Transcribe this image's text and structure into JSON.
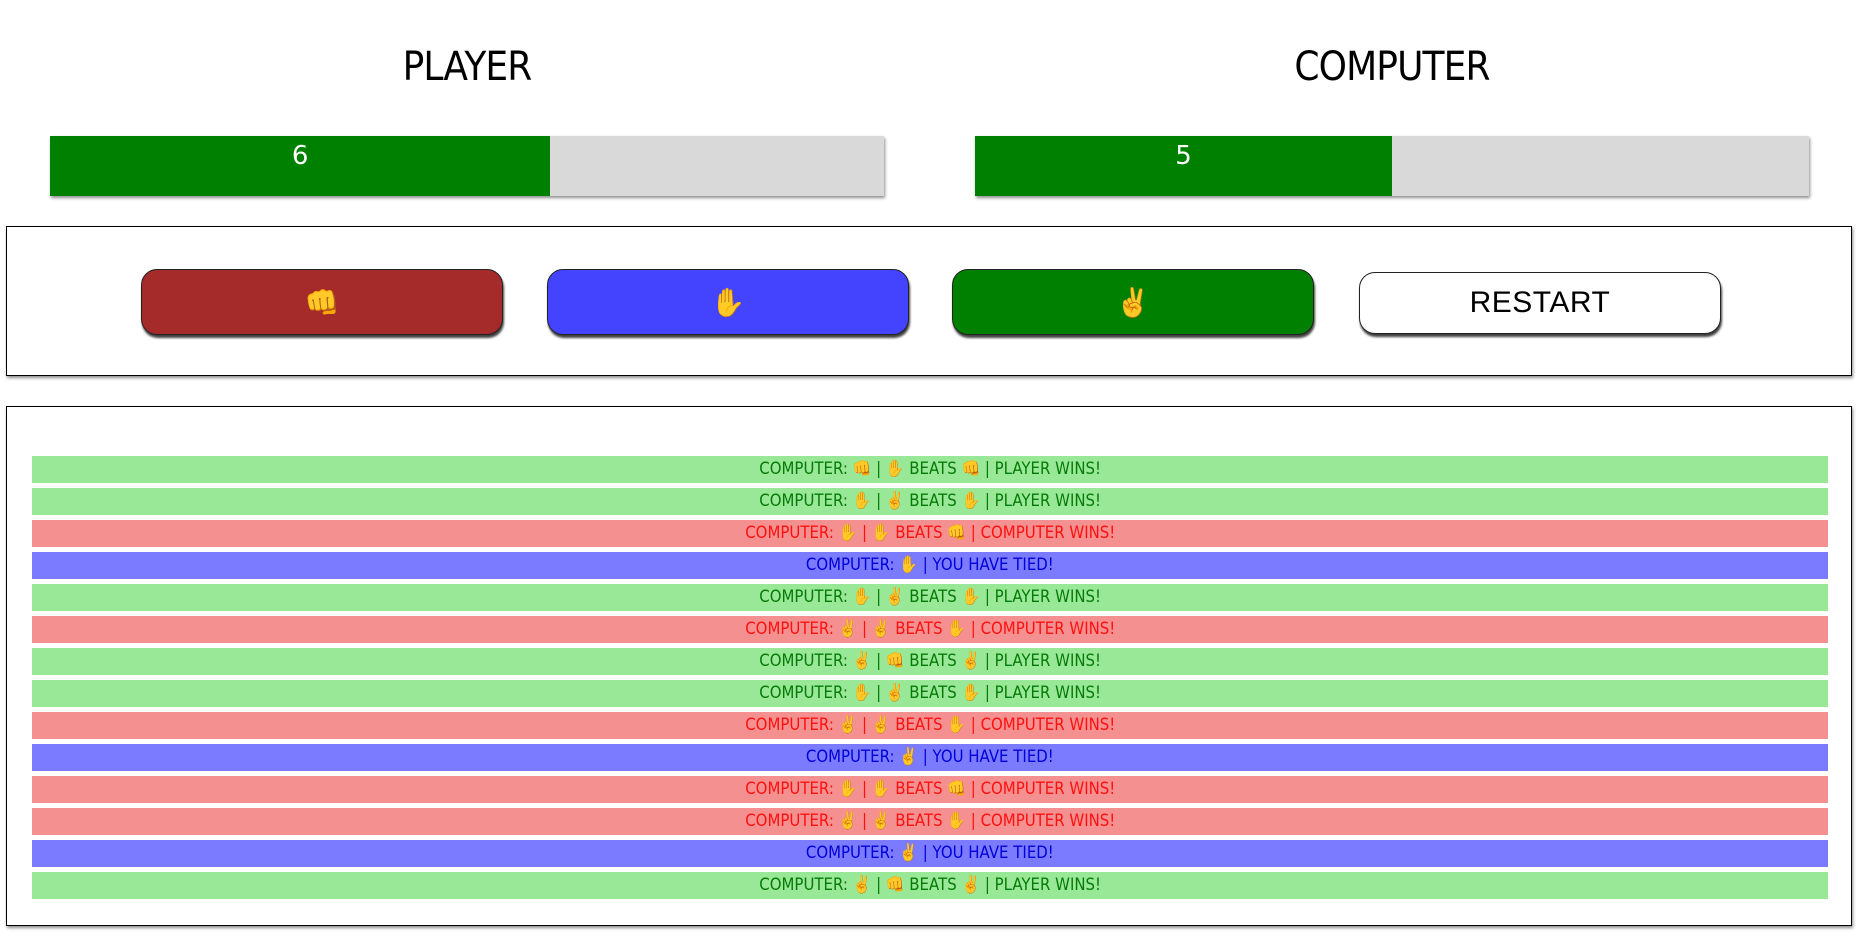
{
  "player": {
    "title": "PLAYER",
    "score": "6",
    "progress_fraction": 0.6
  },
  "computer": {
    "title": "COMPUTER",
    "score": "5",
    "progress_fraction": 0.5
  },
  "colors": {
    "progress_fill": "#008000",
    "progress_track": "#d9d9d9",
    "rock_button": "#a52a2a",
    "paper_button": "#4444ff",
    "scissors_button": "#008000",
    "win_row": "#98e898",
    "lose_row": "#f59090",
    "tie_row": "#7b7bff"
  },
  "controls": {
    "rock": "👊",
    "paper": "✋",
    "scissors": "✌️",
    "restart": "RESTART"
  },
  "history": [
    {
      "result": "win",
      "text": "COMPUTER: 👊 | ✋ BEATS 👊 | PLAYER WINS!"
    },
    {
      "result": "win",
      "text": "COMPUTER: ✋ | ✌️ BEATS ✋ | PLAYER WINS!"
    },
    {
      "result": "lose",
      "text": "COMPUTER: ✋ | ✋ BEATS 👊 | COMPUTER WINS!"
    },
    {
      "result": "tie",
      "text": "COMPUTER: ✋ | YOU HAVE TIED!"
    },
    {
      "result": "win",
      "text": "COMPUTER: ✋ | ✌️ BEATS ✋ | PLAYER WINS!"
    },
    {
      "result": "lose",
      "text": "COMPUTER: ✌️ | ✌️ BEATS ✋ | COMPUTER WINS!"
    },
    {
      "result": "win",
      "text": "COMPUTER: ✌️ | 👊 BEATS ✌️ | PLAYER WINS!"
    },
    {
      "result": "win",
      "text": "COMPUTER: ✋ | ✌️ BEATS ✋ | PLAYER WINS!"
    },
    {
      "result": "lose",
      "text": "COMPUTER: ✌️ | ✌️ BEATS ✋ | COMPUTER WINS!"
    },
    {
      "result": "tie",
      "text": "COMPUTER: ✌️ | YOU HAVE TIED!"
    },
    {
      "result": "lose",
      "text": "COMPUTER: ✋ | ✋ BEATS 👊 | COMPUTER WINS!"
    },
    {
      "result": "lose",
      "text": "COMPUTER: ✌️ | ✌️ BEATS ✋ | COMPUTER WINS!"
    },
    {
      "result": "tie",
      "text": "COMPUTER: ✌️ | YOU HAVE TIED!"
    },
    {
      "result": "win",
      "text": "COMPUTER: ✌️ | 👊 BEATS ✌️ | PLAYER WINS!"
    }
  ]
}
